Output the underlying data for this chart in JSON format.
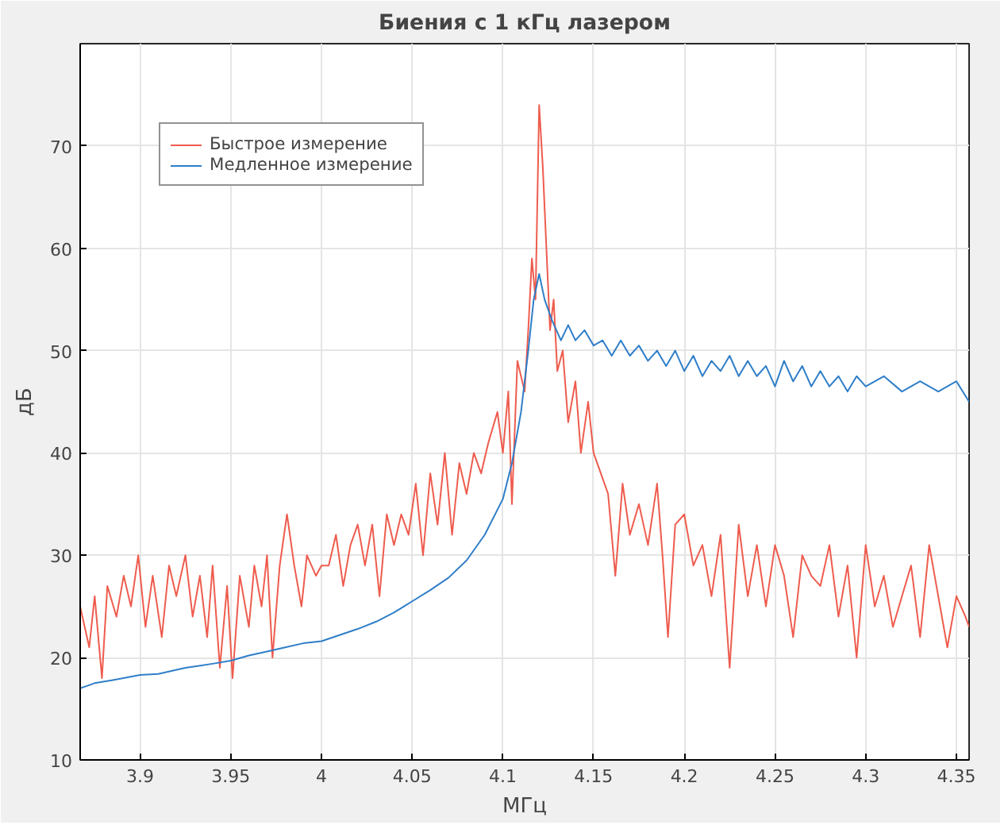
{
  "chart_data": {
    "type": "line",
    "title": "Биения с 1 кГц лазером",
    "xlabel": "МГц",
    "ylabel": "дБ",
    "xlim": [
      3.867,
      4.357
    ],
    "ylim": [
      10,
      80
    ],
    "xticks": [
      3.9,
      3.95,
      4,
      4.05,
      4.1,
      4.15,
      4.2,
      4.25,
      4.3,
      4.35
    ],
    "yticks": [
      10,
      20,
      30,
      40,
      50,
      60,
      70
    ],
    "grid": true,
    "legend": "top left",
    "series": [
      {
        "name": "Быстрое измерение",
        "color": "#ee5c4e",
        "x": [
          3.867,
          3.872,
          3.875,
          3.879,
          3.882,
          3.887,
          3.891,
          3.895,
          3.899,
          3.903,
          3.907,
          3.912,
          3.916,
          3.92,
          3.925,
          3.929,
          3.933,
          3.937,
          3.94,
          3.944,
          3.948,
          3.951,
          3.955,
          3.96,
          3.963,
          3.967,
          3.97,
          3.973,
          3.977,
          3.981,
          3.985,
          3.989,
          3.992,
          3.997,
          4.0,
          4.004,
          4.008,
          4.012,
          4.016,
          4.02,
          4.024,
          4.028,
          4.032,
          4.036,
          4.04,
          4.044,
          4.048,
          4.052,
          4.056,
          4.06,
          4.064,
          4.068,
          4.072,
          4.076,
          4.08,
          4.084,
          4.088,
          4.092,
          4.097,
          4.1,
          4.103,
          4.105,
          4.108,
          4.112,
          4.114,
          4.116,
          4.118,
          4.12,
          4.122,
          4.124,
          4.126,
          4.128,
          4.13,
          4.133,
          4.136,
          4.14,
          4.143,
          4.147,
          4.15,
          4.154,
          4.158,
          4.162,
          4.166,
          4.17,
          4.175,
          4.18,
          4.185,
          4.188,
          4.191,
          4.195,
          4.2,
          4.205,
          4.21,
          4.215,
          4.22,
          4.225,
          4.23,
          4.235,
          4.24,
          4.245,
          4.25,
          4.255,
          4.26,
          4.265,
          4.27,
          4.275,
          4.28,
          4.285,
          4.29,
          4.295,
          4.3,
          4.305,
          4.31,
          4.315,
          4.32,
          4.325,
          4.33,
          4.335,
          4.34,
          4.345,
          4.35,
          4.355,
          4.357
        ],
        "values": [
          25,
          21,
          26,
          18,
          27,
          24,
          28,
          25,
          30,
          23,
          28,
          22,
          29,
          26,
          30,
          24,
          28,
          22,
          29,
          19,
          27,
          18,
          28,
          23,
          29,
          25,
          30,
          20,
          29,
          34,
          29,
          25,
          30,
          28,
          29,
          29,
          32,
          27,
          31,
          33,
          29,
          33,
          26,
          34,
          31,
          34,
          32,
          37,
          30,
          38,
          33,
          40,
          32,
          39,
          36,
          40,
          38,
          41,
          44,
          40,
          46,
          35,
          49,
          46,
          52,
          59,
          55,
          74,
          68,
          60,
          52,
          55,
          48,
          50,
          43,
          47,
          40,
          45,
          40,
          38,
          36,
          28,
          37,
          32,
          35,
          31,
          37,
          30,
          22,
          33,
          34,
          29,
          31,
          26,
          32,
          19,
          33,
          26,
          31,
          25,
          31,
          28,
          22,
          30,
          28,
          27,
          31,
          24,
          29,
          20,
          31,
          25,
          28,
          23,
          26,
          29,
          22,
          31,
          26,
          21,
          26,
          24,
          23
        ]
      },
      {
        "name": "Медленное измерение",
        "color": "#2f7ec8",
        "x": [
          3.867,
          3.875,
          3.885,
          3.9,
          3.91,
          3.925,
          3.94,
          3.95,
          3.96,
          3.97,
          3.98,
          3.99,
          4.0,
          4.01,
          4.02,
          4.03,
          4.04,
          4.05,
          4.06,
          4.07,
          4.08,
          4.09,
          4.1,
          4.105,
          4.11,
          4.114,
          4.117,
          4.12,
          4.123,
          4.127,
          4.132,
          4.136,
          4.14,
          4.145,
          4.15,
          4.155,
          4.16,
          4.165,
          4.17,
          4.175,
          4.18,
          4.185,
          4.19,
          4.195,
          4.2,
          4.205,
          4.21,
          4.215,
          4.22,
          4.225,
          4.23,
          4.235,
          4.24,
          4.245,
          4.25,
          4.255,
          4.26,
          4.265,
          4.27,
          4.275,
          4.28,
          4.285,
          4.29,
          4.295,
          4.3,
          4.31,
          4.32,
          4.33,
          4.34,
          4.35,
          4.357
        ],
        "values": [
          17,
          17.5,
          17.8,
          18.3,
          18.4,
          19,
          19.4,
          19.7,
          20.2,
          20.6,
          21,
          21.4,
          21.6,
          22.2,
          22.8,
          23.5,
          24.4,
          25.5,
          26.6,
          27.8,
          29.5,
          32,
          35.5,
          39,
          44,
          50,
          55,
          57.5,
          55,
          53,
          51,
          52.5,
          51,
          52,
          50.5,
          51,
          49.5,
          51,
          49.5,
          50.5,
          49,
          50,
          48.5,
          50,
          48,
          49.5,
          47.5,
          49,
          48,
          49.5,
          47.5,
          49,
          47.5,
          48.5,
          46.5,
          49,
          47,
          48.5,
          46.5,
          48,
          46.5,
          47.5,
          46,
          47.5,
          46.5,
          47.5,
          46,
          47,
          46,
          47,
          45
        ]
      }
    ]
  }
}
